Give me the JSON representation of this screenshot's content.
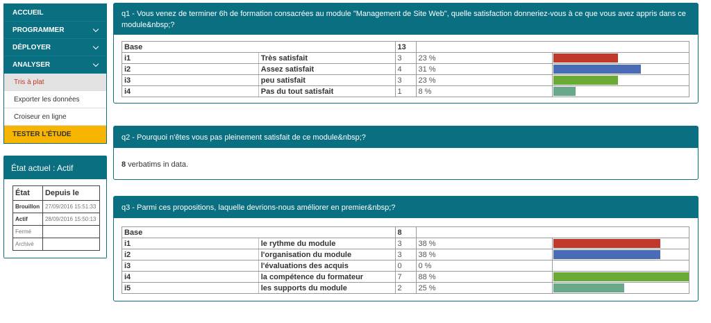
{
  "nav": {
    "items": [
      {
        "label": "ACCUEIL",
        "chevron": false
      },
      {
        "label": "PROGRAMMER",
        "chevron": true
      },
      {
        "label": "DÉPLOYER",
        "chevron": true
      },
      {
        "label": "ANALYSER",
        "chevron": true
      }
    ],
    "subitems": [
      {
        "label": "Tris à plat",
        "active": true
      },
      {
        "label": "Exporter les données",
        "active": false
      },
      {
        "label": "Croiseur en ligne",
        "active": false
      }
    ],
    "cta": "TESTER L'ÉTUDE"
  },
  "state": {
    "title": "État actuel : Actif",
    "col_state": "État",
    "col_since": "Depuis le",
    "rows": [
      {
        "state": "Brouillon",
        "since": "27/09/2016 15:51:33",
        "bold": true
      },
      {
        "state": "Actif",
        "since": "28/09/2016 15:50:13",
        "bold": true
      },
      {
        "state": "Fermé",
        "since": "",
        "bold": false
      },
      {
        "state": "Archivé",
        "since": "",
        "bold": false
      }
    ]
  },
  "q1": {
    "title": "q1 - Vous venez de terminer 6h de formation consacrées au module \"Management de Site Web\", quelle satisfaction donneriez-vous à ce que vous avez appris dans ce module&nbsp;?",
    "base_label": "Base",
    "base_n": "13",
    "rows": [
      {
        "code": "i1",
        "label": "Très satisfait",
        "n": "3",
        "pct": "23 %",
        "value": 23,
        "color": "#c0392b"
      },
      {
        "code": "i2",
        "label": "Assez satisfait",
        "n": "4",
        "pct": "31 %",
        "value": 31,
        "color": "#4a6bb5"
      },
      {
        "code": "i3",
        "label": "peu satisfait",
        "n": "3",
        "pct": "23 %",
        "value": 23,
        "color": "#6aab35"
      },
      {
        "code": "i4",
        "label": "Pas du tout satisfait",
        "n": "1",
        "pct": "8 %",
        "value": 8,
        "color": "#6aa88a"
      }
    ]
  },
  "q2": {
    "title": "q2 - Pourquoi n'êtes vous pas pleinement satisfait de ce module&nbsp;?",
    "verbatim_count": "8",
    "verbatim_text": " verbatims in data."
  },
  "q3": {
    "title": "q3 - Parmi ces propositions, laquelle devrions-nous améliorer en premier&nbsp;?",
    "base_label": "Base",
    "base_n": "8",
    "rows": [
      {
        "code": "i1",
        "label": "le rythme du module",
        "n": "3",
        "pct": "38 %",
        "value": 38,
        "color": "#c0392b"
      },
      {
        "code": "i2",
        "label": "l'organisation du module",
        "n": "3",
        "pct": "38 %",
        "value": 38,
        "color": "#4a6bb5"
      },
      {
        "code": "i3",
        "label": "l'évaluations des acquis",
        "n": "0",
        "pct": "0 %",
        "value": 0,
        "color": "#c9a227"
      },
      {
        "code": "i4",
        "label": "la compétence du formateur",
        "n": "7",
        "pct": "88 %",
        "value": 88,
        "color": "#6aab35"
      },
      {
        "code": "i5",
        "label": "les supports du module",
        "n": "2",
        "pct": "25 %",
        "value": 25,
        "color": "#6aa88a"
      }
    ]
  }
}
